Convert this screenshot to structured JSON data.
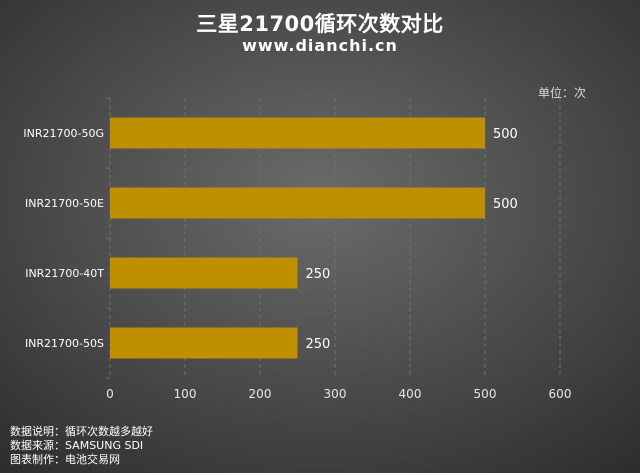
{
  "title": "三星21700循环次数对比",
  "subtitle": "www.dianchi.cn",
  "unit": "单位：次",
  "colors": {
    "bar": "#bf8f00",
    "grid": "#6e6e6e",
    "text": "#ffffff",
    "axis_text": "#e6e6e6"
  },
  "chart_data": {
    "type": "bar",
    "orientation": "horizontal",
    "categories": [
      "INR21700-50G",
      "INR21700-50E",
      "INR21700-40T",
      "INR21700-50S"
    ],
    "values": [
      500,
      500,
      250,
      250
    ],
    "xlim": [
      0,
      600
    ],
    "xticks": [
      0,
      100,
      200,
      300,
      400,
      500,
      600
    ],
    "grid": "vertical-dashed",
    "data_labels": true
  },
  "notes": [
    "数据说明：循环次数越多越好",
    "数据来源：SAMSUNG SDI",
    "图表制作：电池交易网"
  ]
}
